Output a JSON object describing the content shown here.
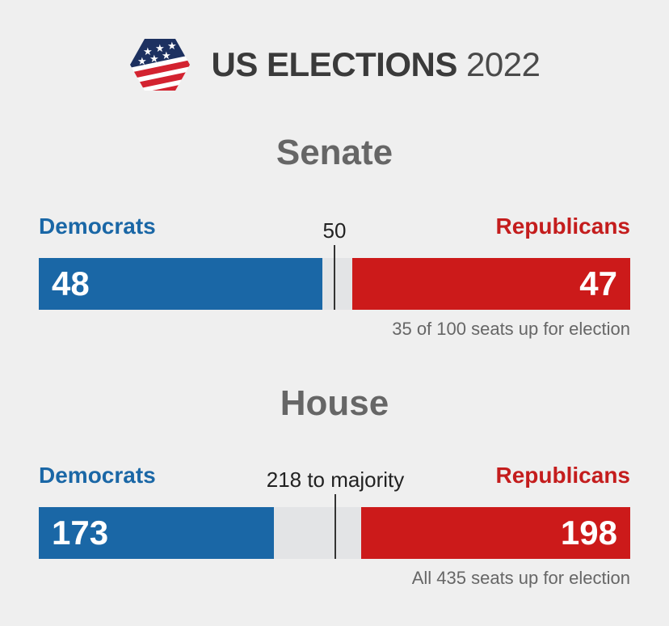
{
  "header": {
    "logo_icon": "us-flag-hexagon-icon",
    "title_bold": "US ELECTIONS",
    "title_year": "2022"
  },
  "colors": {
    "democrat": "#1a67a6",
    "republican": "#cc1a1a",
    "undecided": "#e3e4e6"
  },
  "chart_data": [
    {
      "type": "bar",
      "title": "Senate",
      "series": [
        {
          "name": "Democrats",
          "values": [
            48
          ]
        },
        {
          "name": "Republicans",
          "values": [
            47
          ]
        }
      ],
      "total": 100,
      "majority": 50,
      "majority_label": "50",
      "dem_label": "Democrats",
      "rep_label": "Republicans",
      "dem_value_text": "48",
      "rep_value_text": "47",
      "note": "35 of 100 seats up for election"
    },
    {
      "type": "bar",
      "title": "House",
      "series": [
        {
          "name": "Democrats",
          "values": [
            173
          ]
        },
        {
          "name": "Republicans",
          "values": [
            198
          ]
        }
      ],
      "total": 435,
      "majority": 218,
      "majority_label": "218 to majority",
      "dem_label": "Democrats",
      "rep_label": "Republicans",
      "dem_value_text": "173",
      "rep_value_text": "198",
      "note": "All 435 seats up for election"
    }
  ]
}
